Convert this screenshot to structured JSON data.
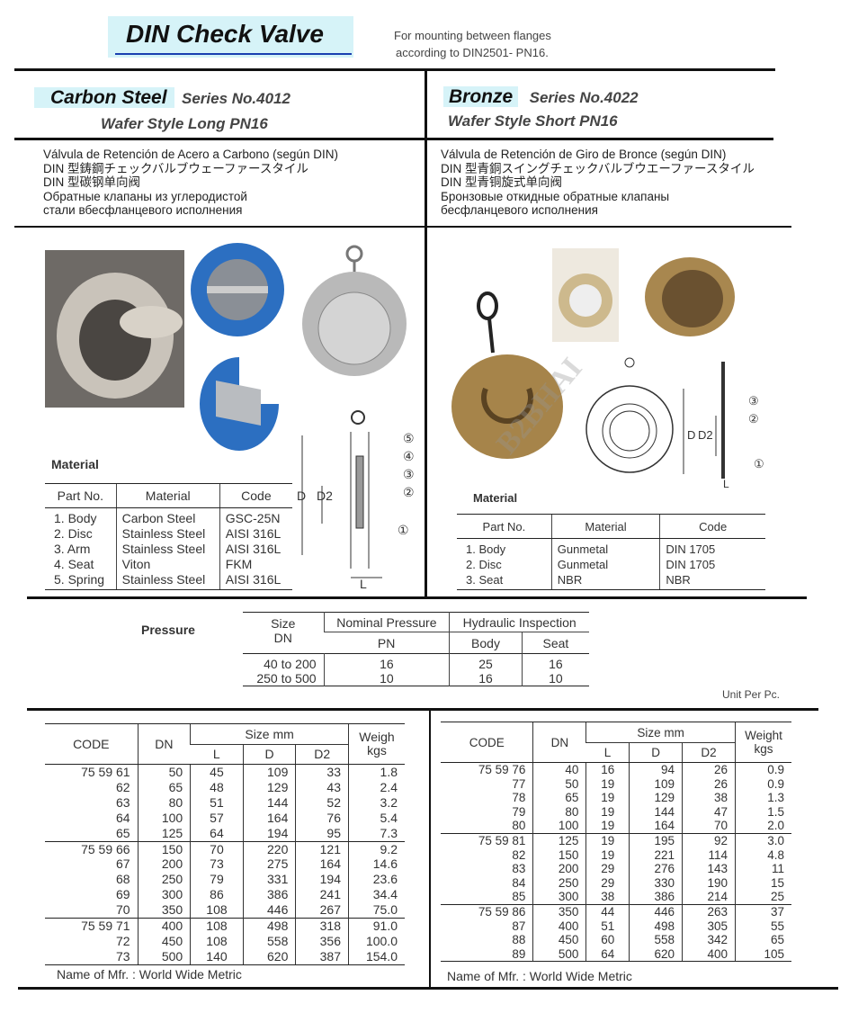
{
  "header": {
    "title": "DIN Check Valve",
    "subtitle_line1": "For mounting between flanges",
    "subtitle_line2": "according to DIN2501- PN16.",
    "title_bg": "#d6f3f8",
    "accent_underline": "#1a3fb0"
  },
  "left": {
    "material_name": "Carbon Steel",
    "series": "Series No.4012",
    "style": "Wafer Style  Long PN16",
    "descriptions": [
      "Válvula de Retención de Acero a Carbono (según DIN)",
      "DIN 型鋳鋼チェックバルブウェーファースタイル",
      "DIN 型碳钢单向阀",
      "Обратные клапаны из углеродистой",
      "стали вбесфланцевого исполнения"
    ],
    "material_label": "Material",
    "material_table": {
      "headers": [
        "Part No.",
        "Material",
        "Code"
      ],
      "rows": [
        [
          "1.  Body",
          "Carbon Steel",
          "GSC-25N"
        ],
        [
          "2.  Disc",
          "Stainless Steel",
          "AISI 316L"
        ],
        [
          "3.  Arm",
          "Stainless Steel",
          "AISI 316L"
        ],
        [
          "4.  Seat",
          "Viton",
          "FKM"
        ],
        [
          "5.  Spring",
          "Stainless Steel",
          "AISI 316L"
        ]
      ]
    },
    "diagram_labels": {
      "d": "D",
      "d2": "D2",
      "l": "L",
      "parts": [
        "⑤",
        "④",
        "③",
        "②",
        "①"
      ]
    }
  },
  "right": {
    "material_name": "Bronze",
    "series": "Series No.4022",
    "style": "Wafer Style Short PN16",
    "descriptions": [
      "Válvula de Retención de Giro de Bronce (según DIN)",
      "DIN 型青銅スイングチェックバルブウエーファースタイル",
      "DIN 型青铜旋式单向阀",
      "Бронзовые откидные обратные клапаны",
      "бесфланцевого исполнения"
    ],
    "material_label": "Material",
    "material_table": {
      "headers": [
        "Part No.",
        "Material",
        "Code"
      ],
      "rows": [
        [
          "1.  Body",
          "Gunmetal",
          "DIN 1705"
        ],
        [
          "2.  Disc",
          "Gunmetal",
          "DIN 1705"
        ],
        [
          "3.  Seat",
          "NBR",
          "NBR"
        ]
      ]
    },
    "diagram_labels": {
      "d": "D",
      "d2": "D2",
      "l": "L",
      "parts": [
        "③",
        "②",
        "①"
      ]
    }
  },
  "pressure": {
    "label": "Pressure",
    "h_size": "Size",
    "h_dn": "DN",
    "h_nominal": "Nominal Pressure",
    "h_hydraulic": "Hydraulic Inspection",
    "h_pn": "PN",
    "h_body": "Body",
    "h_seat": "Seat",
    "rows": [
      [
        "40 to 200",
        "16",
        "25",
        "16"
      ],
      [
        "250 to 500",
        "10",
        "16",
        "10"
      ]
    ]
  },
  "unit_note": "Unit Per Pc.",
  "left_table": {
    "h_code": "CODE",
    "h_dn": "DN",
    "h_size": "Size mm",
    "h_l": "L",
    "h_d": "D",
    "h_d2": "D2",
    "h_weight": "Weigh kgs",
    "rows": [
      [
        "75 59 61",
        "50",
        "45",
        "109",
        "33",
        "1.8"
      ],
      [
        "62",
        "65",
        "48",
        "129",
        "43",
        "2.4"
      ],
      [
        "63",
        "80",
        "51",
        "144",
        "52",
        "3.2"
      ],
      [
        "64",
        "100",
        "57",
        "164",
        "76",
        "5.4"
      ],
      [
        "65",
        "125",
        "64",
        "194",
        "95",
        "7.3"
      ],
      [
        "75 59 66",
        "150",
        "70",
        "220",
        "121",
        "9.2"
      ],
      [
        "67",
        "200",
        "73",
        "275",
        "164",
        "14.6"
      ],
      [
        "68",
        "250",
        "79",
        "331",
        "194",
        "23.6"
      ],
      [
        "69",
        "300",
        "86",
        "386",
        "241",
        "34.4"
      ],
      [
        "70",
        "350",
        "108",
        "446",
        "267",
        "75.0"
      ],
      [
        "75 59 71",
        "400",
        "108",
        "498",
        "318",
        "91.0"
      ],
      [
        "72",
        "450",
        "108",
        "558",
        "356",
        "100.0"
      ],
      [
        "73",
        "500",
        "140",
        "620",
        "387",
        "154.0"
      ]
    ],
    "footer": "Name of Mfr. : World Wide Metric"
  },
  "right_table": {
    "h_code": "CODE",
    "h_dn": "DN",
    "h_size": "Size mm",
    "h_l": "L",
    "h_d": "D",
    "h_d2": "D2",
    "h_weight": "Weight kgs",
    "rows": [
      [
        "75 59 76",
        "40",
        "16",
        "94",
        "26",
        "0.9"
      ],
      [
        "77",
        "50",
        "19",
        "109",
        "26",
        "0.9"
      ],
      [
        "78",
        "65",
        "19",
        "129",
        "38",
        "1.3"
      ],
      [
        "79",
        "80",
        "19",
        "144",
        "47",
        "1.5"
      ],
      [
        "80",
        "100",
        "19",
        "164",
        "70",
        "2.0"
      ],
      [
        "75 59 81",
        "125",
        "19",
        "195",
        "92",
        "3.0"
      ],
      [
        "82",
        "150",
        "19",
        "221",
        "114",
        "4.8"
      ],
      [
        "83",
        "200",
        "29",
        "276",
        "143",
        "11"
      ],
      [
        "84",
        "250",
        "29",
        "330",
        "190",
        "15"
      ],
      [
        "85",
        "300",
        "38",
        "386",
        "214",
        "25"
      ],
      [
        "75 59 86",
        "350",
        "44",
        "446",
        "263",
        "37"
      ],
      [
        "87",
        "400",
        "51",
        "498",
        "305",
        "55"
      ],
      [
        "88",
        "450",
        "60",
        "558",
        "342",
        "65"
      ],
      [
        "89",
        "500",
        "64",
        "620",
        "400",
        "105"
      ]
    ],
    "footer": "Name of Mfr. : World Wide Metric"
  },
  "watermark": "B2BHAI"
}
